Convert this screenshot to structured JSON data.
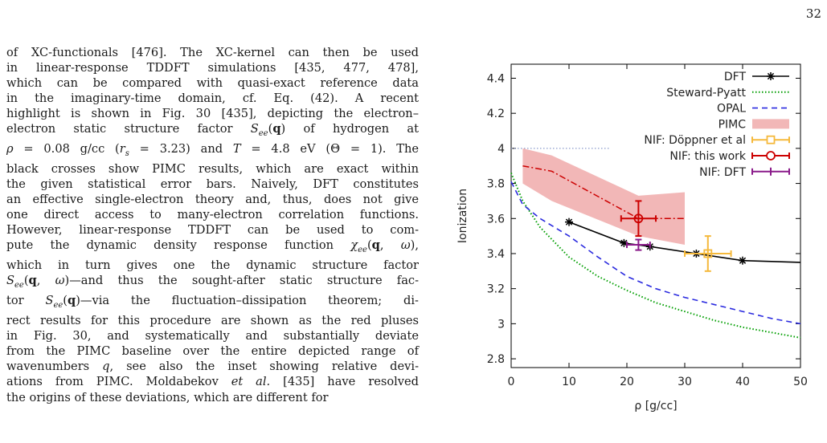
{
  "page": {
    "number": "32"
  },
  "body": {
    "lines": [
      [
        "of XC-functionals [476]. The XC-kernel can then be used"
      ],
      [
        "in linear-response TDDFT simulations [435, 477, 478],"
      ],
      [
        "which can be compared with quasi-exact reference data"
      ],
      [
        "in the imaginary-time domain, cf. Eq. (42). A recent"
      ],
      [
        "highlight is shown in Fig. 30 [435], depicting the electron–"
      ],
      [
        "electron static structure factor S_ee(q) of hydrogen at"
      ],
      [
        "ρ = 0.08 g/cc (r_s = 3.23) and T = 4.8 eV (Θ = 1). The"
      ],
      [
        "black crosses show PIMC results, which are exact within"
      ],
      [
        "the given statistical error bars. Naively, DFT constitutes"
      ],
      [
        "an effective single-electron theory and, thus, does not give"
      ],
      [
        "one direct access to many-electron correlation functions."
      ],
      [
        "However, linear-response TDDFT can be used to com-"
      ],
      [
        "pute the dynamic density response function χ_ee(q, ω),"
      ],
      [
        "which in turn gives one the dynamic structure factor"
      ],
      [
        "S_ee(q, ω)—and thus the sought-after static structure fac-"
      ],
      [
        "tor S_ee(q)—via the fluctuation–dissipation theorem; di-"
      ],
      [
        "rect results for this procedure are shown as the red pluses"
      ],
      [
        "in Fig. 30, and systematically and substantially deviate"
      ],
      [
        "from the PIMC baseline over the entire depicted range of"
      ],
      [
        "wavenumbers q, see also the inset showing relative devi-"
      ],
      [
        "ations from PIMC. Moldabekov et al. [435] have resolved"
      ],
      [
        "the origins of these deviations, which are different for"
      ]
    ]
  },
  "colors": {
    "dft": "#000000",
    "steward_pyatt": "#009e00",
    "opal": "#2b2bdf",
    "pimc": "#f2b7b7",
    "pimc_line": "#cc0000",
    "nif_doppner": "#f5b93c",
    "nif_this_work": "#cc0000",
    "nif_dft": "#8a1a8a"
  },
  "chart_data": {
    "type": "line",
    "xlabel": "ρ [g/cc]",
    "ylabel": "Ionization",
    "xlim": [
      0,
      50
    ],
    "ylim": [
      2.75,
      4.48
    ],
    "xticks": [
      "0",
      "10",
      "20",
      "30",
      "40",
      "50"
    ],
    "yticks": [
      "2.8",
      "3",
      "3.2",
      "3.4",
      "3.6",
      "3.8",
      "4",
      "4.2",
      "4.4"
    ],
    "legend_position": "top-right",
    "series": [
      {
        "name": "DFT",
        "style": "solid-star",
        "x": [
          10,
          19.5,
          24,
          32,
          40,
          50
        ],
        "y": [
          3.58,
          3.46,
          3.44,
          3.4,
          3.36,
          3.35
        ]
      },
      {
        "name": "Steward-Pyatt",
        "style": "dotted",
        "x": [
          0,
          2,
          5,
          10,
          15,
          20,
          25,
          30,
          35,
          40,
          45,
          50
        ],
        "y": [
          3.86,
          3.7,
          3.55,
          3.38,
          3.27,
          3.19,
          3.12,
          3.07,
          3.02,
          2.98,
          2.95,
          2.92
        ]
      },
      {
        "name": "OPAL",
        "style": "dashed",
        "x": [
          0,
          2,
          5,
          10,
          15,
          20,
          25,
          30,
          35,
          40,
          45,
          50
        ],
        "y": [
          3.81,
          3.68,
          3.6,
          3.5,
          3.38,
          3.27,
          3.2,
          3.15,
          3.11,
          3.07,
          3.03,
          3.0
        ]
      },
      {
        "name": "PIMC",
        "style": "band",
        "x": [
          2,
          7,
          22,
          30
        ],
        "y_low": [
          3.8,
          3.7,
          3.5,
          3.45
        ],
        "y_high": [
          4.0,
          3.96,
          3.73,
          3.75
        ],
        "y": [
          3.9,
          3.87,
          3.6,
          3.6
        ]
      },
      {
        "name": "NIF: Döppner et al",
        "style": "errorbar",
        "x": [
          34
        ],
        "y": [
          3.4
        ],
        "xerr": [
          4
        ],
        "yerr": [
          0.1
        ]
      },
      {
        "name": "NIF: this work",
        "style": "errorbar",
        "x": [
          22
        ],
        "y": [
          3.6
        ],
        "xerr": [
          3
        ],
        "yerr": [
          0.1
        ]
      },
      {
        "name": "NIF: DFT",
        "style": "errorbar",
        "x": [
          22
        ],
        "y": [
          3.45
        ],
        "xerr": [
          2
        ],
        "yerr": [
          0.03
        ]
      }
    ],
    "extra": {
      "dotted_reference_y": 4.0,
      "dotted_reference_x": [
        0,
        17
      ]
    }
  }
}
